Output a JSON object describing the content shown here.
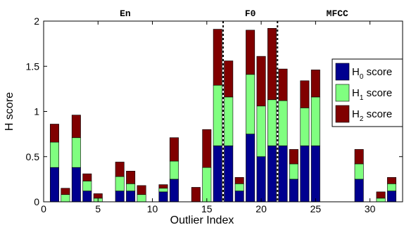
{
  "chart_data": {
    "type": "bar",
    "stacked": true,
    "xlabel": "Outlier Index",
    "ylabel": "H score",
    "xlim": [
      0,
      33
    ],
    "ylim": [
      0,
      2
    ],
    "xticks": [
      0,
      5,
      10,
      15,
      20,
      25,
      30
    ],
    "yticks": [
      0,
      0.5,
      1,
      1.5,
      2
    ],
    "ytick_labels": [
      "0",
      "0.5",
      "1",
      "1.5",
      "2"
    ],
    "x": [
      1,
      2,
      3,
      4,
      5,
      7,
      8,
      9,
      11,
      12,
      14,
      15,
      16,
      17,
      18,
      19,
      20,
      21,
      22,
      23,
      24,
      25,
      29,
      31,
      32
    ],
    "series": [
      {
        "name": "H_0 score",
        "color": "#00008f",
        "values": [
          0.38,
          0.0,
          0.38,
          0.12,
          0.0,
          0.12,
          0.12,
          0.0,
          0.11,
          0.25,
          0.0,
          0.0,
          0.62,
          0.62,
          0.12,
          0.75,
          0.5,
          0.62,
          0.62,
          0.25,
          0.62,
          0.62,
          0.25,
          0.0,
          0.12
        ]
      },
      {
        "name": "H_1 score",
        "color": "#80ff80",
        "values": [
          0.28,
          0.08,
          0.33,
          0.11,
          0.04,
          0.16,
          0.08,
          0.08,
          0.04,
          0.2,
          0.0,
          0.38,
          0.67,
          0.54,
          0.08,
          0.66,
          0.56,
          0.51,
          0.5,
          0.17,
          0.42,
          0.54,
          0.17,
          0.04,
          0.08
        ]
      },
      {
        "name": "H_2 score",
        "color": "#800000",
        "values": [
          0.2,
          0.07,
          0.25,
          0.08,
          0.05,
          0.16,
          0.14,
          0.1,
          0.04,
          0.26,
          0.16,
          0.42,
          0.62,
          0.4,
          0.07,
          0.49,
          0.55,
          0.79,
          0.35,
          0.16,
          0.3,
          0.3,
          0.16,
          0.07,
          0.07
        ]
      }
    ],
    "separators": [
      16.5,
      21.5
    ],
    "sections": [
      {
        "label": "En",
        "x": 7.5
      },
      {
        "label": "F0",
        "x": 19
      },
      {
        "label": "MFCC",
        "x": 27
      }
    ],
    "legend": {
      "placement": "right",
      "entries": [
        {
          "base": "H",
          "sub": "0",
          "suffix": " score",
          "color": "#00008f"
        },
        {
          "base": "H",
          "sub": "1",
          "suffix": " score",
          "color": "#80ff80"
        },
        {
          "base": "H",
          "sub": "2",
          "suffix": " score",
          "color": "#800000"
        }
      ]
    },
    "grid": false
  }
}
